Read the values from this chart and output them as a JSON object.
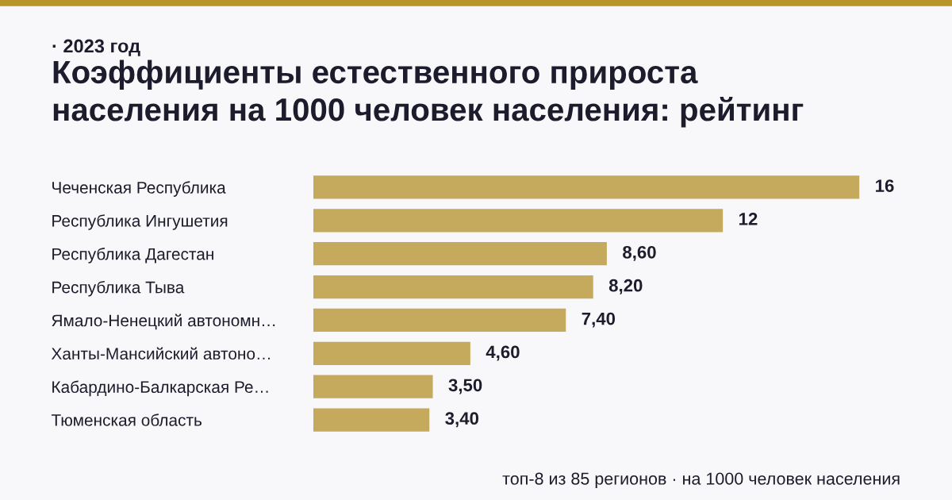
{
  "chart_data": {
    "type": "bar",
    "orientation": "horizontal",
    "title": "Коэффициенты естественного прироста\nнаселения на 1000 человек населения: рейтинг",
    "subtitle": "· 2023 год",
    "categories": [
      "Чеченская Республика",
      "Республика Ингушетия",
      "Республика Дагестан",
      "Республика Тыва",
      "Ямало-Ненецкий автономн…",
      "Ханты-Мансийский автоно…",
      "Кабардино-Балкарская Ре…",
      "Тюменская область"
    ],
    "values": [
      16,
      12,
      8.6,
      8.2,
      7.4,
      4.6,
      3.5,
      3.4
    ],
    "value_labels": [
      "16",
      "12",
      "8,60",
      "8,20",
      "7,40",
      "4,60",
      "3,50",
      "3,40"
    ],
    "color": "#c5a95c",
    "annotations": [
      "топ-8 из 85 регионов · на 1000 человек населения"
    ]
  }
}
